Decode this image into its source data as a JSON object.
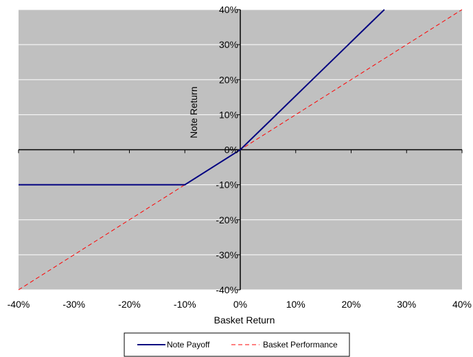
{
  "chart_data": {
    "type": "line",
    "xlabel": "Basket Return",
    "ylabel": "Note Return",
    "xlim": [
      -0.4,
      0.4
    ],
    "ylim": [
      -0.4,
      0.4
    ],
    "x_ticks": [
      -0.4,
      -0.3,
      -0.2,
      -0.1,
      0,
      0.1,
      0.2,
      0.3,
      0.4
    ],
    "y_ticks": [
      -0.4,
      -0.3,
      -0.2,
      -0.1,
      0,
      0.1,
      0.2,
      0.3,
      0.4
    ],
    "x_tick_labels": [
      "-40%",
      "-30%",
      "-20%",
      "-10%",
      "0%",
      "10%",
      "20%",
      "30%",
      "40%"
    ],
    "y_tick_labels": [
      "-40%",
      "-30%",
      "-20%",
      "-10%",
      "0%",
      "10%",
      "20%",
      "30%",
      "40%"
    ],
    "grid": "horizontal",
    "plot_background": "#C0C0C0",
    "legend_position": "bottom",
    "series": [
      {
        "name": "Note Payoff",
        "color": "#000080",
        "style": "solid",
        "x": [
          -0.4,
          -0.1,
          0,
          0.26
        ],
        "y": [
          -0.1,
          -0.1,
          0,
          0.4
        ]
      },
      {
        "name": "Basket Performance",
        "color": "#FF0000",
        "style": "dashed",
        "x": [
          -0.4,
          0.4
        ],
        "y": [
          -0.4,
          0.4
        ]
      }
    ]
  }
}
